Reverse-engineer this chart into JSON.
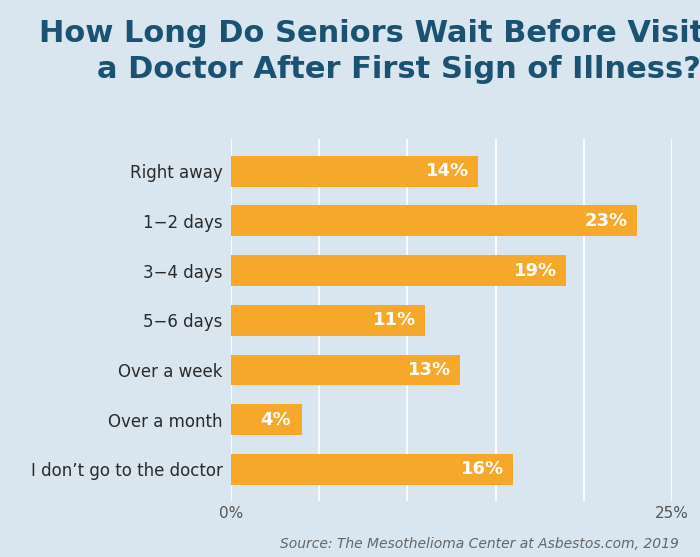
{
  "title": "How Long Do Seniors Wait Before Visiting\na Doctor After First Sign of Illness?",
  "categories": [
    "Right away",
    "1−2 days",
    "3−4 days",
    "5−6 days",
    "Over a week",
    "Over a month",
    "I don’t go to the doctor"
  ],
  "values": [
    14,
    23,
    19,
    11,
    13,
    4,
    16
  ],
  "labels": [
    "14%",
    "23%",
    "19%",
    "11%",
    "13%",
    "4%",
    "16%"
  ],
  "bar_color": "#F5A82A",
  "background_color": "#D9E6F0",
  "title_color": "#1B5272",
  "label_color": "#FFFFFF",
  "source_text": "Source: The Mesothelioma Center at Asbestos.com, 2019",
  "xlim": [
    0,
    25
  ],
  "xticks": [
    0,
    5,
    10,
    15,
    20,
    25
  ],
  "xtick_labels": [
    "0%",
    "",
    "",
    "",
    "",
    "25%"
  ],
  "title_fontsize": 22,
  "label_fontsize": 13,
  "category_fontsize": 12,
  "source_fontsize": 10,
  "bar_height": 0.62
}
